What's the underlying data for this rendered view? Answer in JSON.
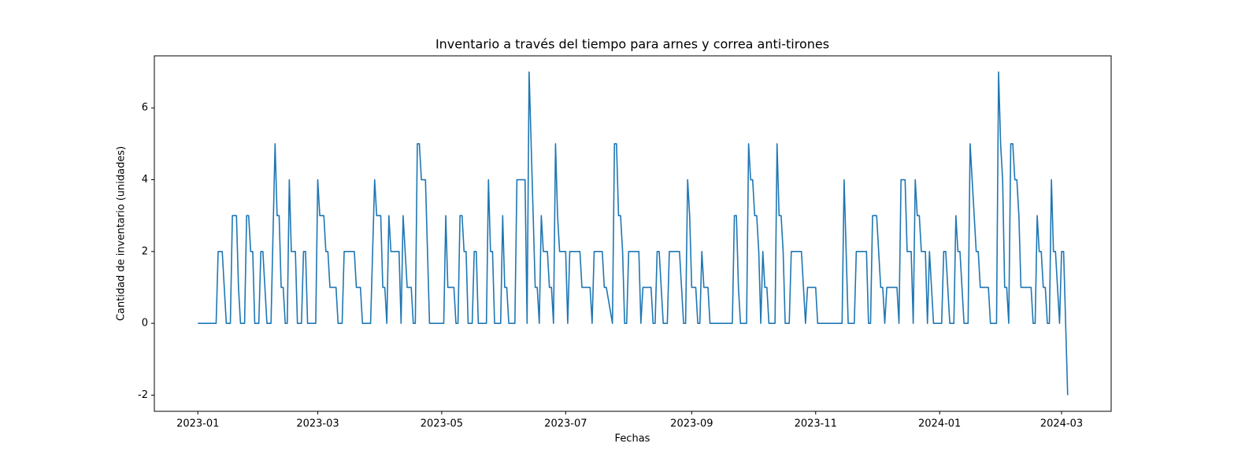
{
  "chart_data": {
    "type": "line",
    "title": "Inventario a través del tiempo para arnes y correa anti-tirones",
    "xlabel": "Fechas",
    "ylabel": "Cantidad de inventario (unidades)",
    "color": "#1f77b4",
    "x": [
      0,
      9,
      10,
      12,
      14,
      16,
      17,
      19,
      20,
      21,
      23,
      24,
      25,
      26,
      27,
      28,
      30,
      31,
      32,
      34,
      36,
      38,
      39,
      40,
      41,
      42,
      43,
      44,
      45,
      46,
      48,
      49,
      51,
      52,
      53,
      54,
      58,
      59,
      60,
      62,
      63,
      64,
      65,
      68,
      69,
      71,
      72,
      77,
      78,
      80,
      81,
      85,
      87,
      88,
      90,
      91,
      92,
      93,
      94,
      95,
      99,
      100,
      101,
      102,
      103,
      105,
      106,
      107,
      108,
      109,
      110,
      112,
      114,
      121,
      122,
      123,
      126,
      127,
      128,
      129,
      130,
      131,
      132,
      133,
      135,
      136,
      137,
      138,
      142,
      143,
      144,
      145,
      146,
      149,
      150,
      151,
      152,
      153,
      156,
      157,
      161,
      162,
      163,
      165,
      166,
      167,
      168,
      169,
      170,
      172,
      173,
      174,
      175,
      176,
      177,
      178,
      181,
      182,
      183,
      188,
      189,
      193,
      194,
      195,
      199,
      200,
      201,
      204,
      205,
      206,
      207,
      208,
      209,
      210,
      211,
      212,
      217,
      218,
      219,
      223,
      224,
      225,
      226,
      227,
      228,
      229,
      231,
      232,
      237,
      238,
      239,
      240,
      241,
      242,
      243,
      245,
      246,
      247,
      248,
      249,
      251,
      252,
      263,
      264,
      265,
      266,
      267,
      270,
      271,
      272,
      273,
      274,
      275,
      276,
      277,
      278,
      279,
      280,
      281,
      284,
      285,
      286,
      287,
      288,
      289,
      291,
      292,
      297,
      298,
      299,
      300,
      304,
      305,
      317,
      318,
      319,
      320,
      323,
      324,
      329,
      330,
      331,
      332,
      334,
      335,
      336,
      337,
      338,
      339,
      344,
      345,
      346,
      348,
      349,
      351,
      352,
      353,
      354,
      355,
      356,
      358,
      359,
      360,
      361,
      362,
      366,
      367,
      368,
      369,
      370,
      372,
      373,
      374,
      375,
      376,
      377,
      379,
      380,
      381,
      382,
      383,
      384,
      385,
      389,
      390,
      393,
      394,
      395,
      396,
      397,
      398,
      399,
      400,
      401,
      402,
      403,
      404,
      405,
      410,
      411,
      412,
      413,
      414,
      415,
      416,
      417,
      418,
      419,
      420,
      421,
      422,
      423,
      424,
      425,
      426,
      427,
      428
    ],
    "values": [
      0,
      0,
      2,
      2,
      0,
      0,
      3,
      3,
      1,
      0,
      0,
      3,
      3,
      2,
      2,
      0,
      0,
      2,
      2,
      0,
      0,
      5,
      3,
      3,
      1,
      1,
      0,
      0,
      4,
      2,
      2,
      0,
      0,
      2,
      2,
      0,
      0,
      4,
      3,
      3,
      2,
      2,
      1,
      1,
      0,
      0,
      2,
      2,
      1,
      1,
      0,
      0,
      4,
      3,
      3,
      1,
      1,
      0,
      3,
      2,
      2,
      0,
      3,
      2,
      1,
      1,
      0,
      0,
      5,
      5,
      4,
      4,
      0,
      0,
      3,
      1,
      1,
      0,
      0,
      3,
      3,
      2,
      2,
      0,
      0,
      2,
      2,
      0,
      0,
      4,
      2,
      2,
      0,
      0,
      3,
      1,
      1,
      0,
      0,
      4,
      4,
      0,
      7,
      3,
      1,
      1,
      0,
      3,
      2,
      2,
      1,
      1,
      0,
      5,
      3,
      2,
      2,
      0,
      2,
      2,
      1,
      1,
      0,
      2,
      2,
      1,
      1,
      0,
      5,
      5,
      3,
      3,
      2,
      0,
      0,
      2,
      2,
      0,
      1,
      1,
      0,
      0,
      2,
      2,
      1,
      0,
      0,
      2,
      2,
      1,
      0,
      0,
      4,
      3,
      1,
      1,
      0,
      0,
      2,
      1,
      1,
      0,
      0,
      3,
      3,
      1,
      0,
      0,
      5,
      4,
      4,
      3,
      3,
      2,
      0,
      2,
      1,
      1,
      0,
      0,
      5,
      3,
      3,
      2,
      0,
      0,
      2,
      2,
      1,
      0,
      1,
      1,
      0,
      0,
      4,
      2,
      0,
      0,
      2,
      2,
      0,
      0,
      3,
      3,
      2,
      1,
      1,
      0,
      1,
      1,
      0,
      4,
      4,
      2,
      2,
      0,
      4,
      3,
      3,
      2,
      2,
      0,
      2,
      1,
      0,
      0,
      2,
      2,
      1,
      0,
      0,
      3,
      2,
      2,
      1,
      0,
      0,
      5,
      4,
      3,
      2,
      2,
      1,
      1,
      0,
      0,
      7,
      5,
      4,
      1,
      1,
      0,
      5,
      5,
      4,
      4,
      3,
      1,
      1,
      0,
      0,
      3,
      2,
      2,
      1,
      1,
      0,
      0,
      4,
      2,
      2,
      1,
      0,
      2,
      2,
      0,
      -2
    ],
    "xlim": [
      -21.4,
      449.4
    ],
    "xticks": [
      {
        "value": 0,
        "label": "2023-01"
      },
      {
        "value": 59,
        "label": "2023-03"
      },
      {
        "value": 120,
        "label": "2023-05"
      },
      {
        "value": 181,
        "label": "2023-07"
      },
      {
        "value": 243,
        "label": "2023-09"
      },
      {
        "value": 304,
        "label": "2023-11"
      },
      {
        "value": 365,
        "label": "2024-01"
      },
      {
        "value": 425,
        "label": "2024-03"
      }
    ],
    "ylim": [
      -2.45,
      7.45
    ],
    "yticks": [
      -2,
      0,
      2,
      4,
      6
    ],
    "grid": false
  }
}
